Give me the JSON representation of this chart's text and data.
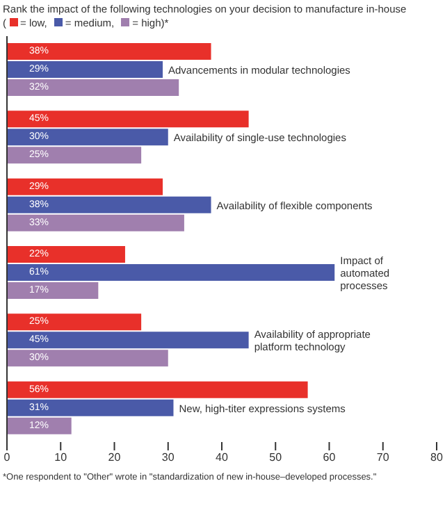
{
  "chart_data": {
    "type": "bar",
    "orientation": "horizontal",
    "title": "Rank the impact of the following technologies on your decision to manufacture in-house",
    "legend_title": "(",
    "legend": "top left",
    "categories": [
      "Advancements in modular technologies",
      "Availability of single-use technologies",
      "Availability of flexible components",
      "Impact of automated processes",
      "Availability of appropriate platform technology",
      "New, high-titer expressions systems"
    ],
    "series": [
      {
        "name": "= low,",
        "color": "#e8302a",
        "values": [
          38,
          45,
          29,
          22,
          25,
          56
        ],
        "value_labels": [
          "38%",
          "45%",
          "29%",
          "22%",
          "25%",
          "56%"
        ]
      },
      {
        "name": "= medium,",
        "color": "#4a5aa8",
        "values": [
          29,
          30,
          38,
          61,
          45,
          31
        ],
        "value_labels": [
          "29%",
          "30%",
          "38%",
          "61%",
          "45%",
          "31%"
        ]
      },
      {
        "name": "= high)*",
        "color": "#a07fae",
        "values": [
          32,
          25,
          33,
          17,
          30,
          12
        ],
        "value_labels": [
          "32%",
          "25%",
          "33%",
          "17%",
          "30%",
          "12%"
        ]
      }
    ],
    "xlim": [
      0,
      80
    ],
    "xticks": [
      0,
      10,
      20,
      30,
      40,
      50,
      60,
      70,
      80
    ],
    "annotations": [
      "*One respondent to \"Other\" wrote in \"standardization of new in-house–developed processes.\""
    ]
  }
}
